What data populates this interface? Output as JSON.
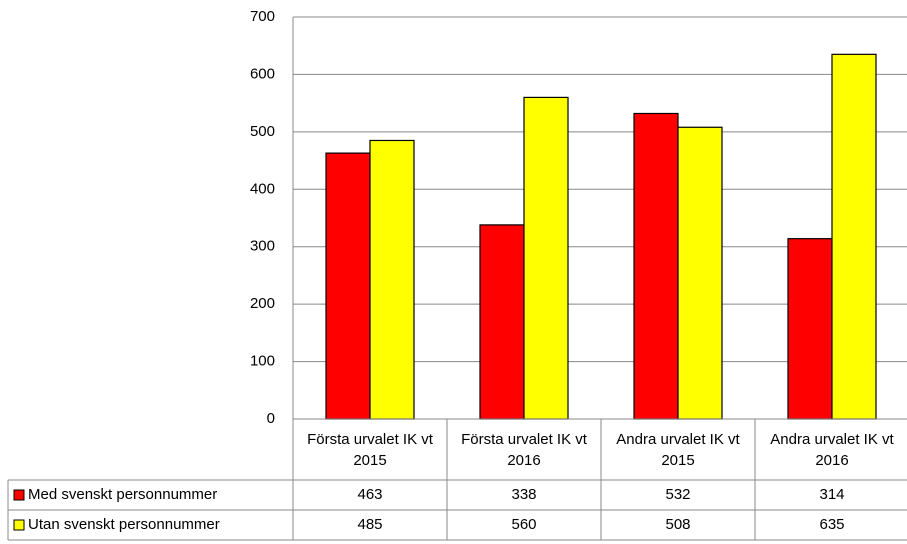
{
  "chart_data": {
    "type": "bar",
    "categories": [
      "Första urvalet IK vt 2015",
      "Första urvalet IK vt 2016",
      "Andra urvalet IK vt 2015",
      "Andra urvalet IK vt 2016"
    ],
    "series": [
      {
        "name": "Med svenskt personnummer",
        "color": "#ff0000",
        "values": [
          463,
          338,
          532,
          314
        ]
      },
      {
        "name": "Utan svenskt personnummer",
        "color": "#ffff00",
        "values": [
          485,
          560,
          508,
          635
        ]
      }
    ],
    "ylim": [
      0,
      700
    ],
    "yticks": [
      0,
      100,
      200,
      300,
      400,
      500,
      600,
      700
    ],
    "grid": true,
    "data_table": true
  }
}
